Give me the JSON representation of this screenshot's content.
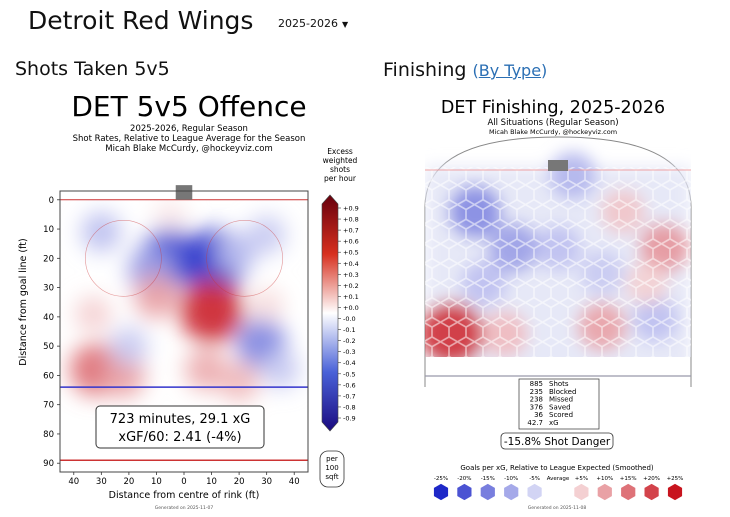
{
  "header": {
    "team": "Detroit Red Wings",
    "season_select": "2025-2026"
  },
  "sections": {
    "left_title": "Shots Taken 5v5",
    "right_title": "Finishing",
    "right_link_open": "(",
    "right_link": "By Type",
    "right_link_close": ")"
  },
  "chart_data": [
    {
      "type": "heatmap",
      "title": "DET 5v5 Offence",
      "subtitle_lines": [
        "2025-2026, Regular Season",
        "Shot Rates, Relative to League Average for the Season",
        "Micah Blake McCurdy, @hockeyviz.com"
      ],
      "xlabel": "Distance from centre of rink (ft)",
      "ylabel": "Distance from goal line (ft)",
      "x_ticks": [
        "40",
        "30",
        "20",
        "10",
        "0",
        "10",
        "20",
        "30",
        "40"
      ],
      "y_ticks": [
        "0",
        "10",
        "20",
        "30",
        "40",
        "50",
        "60",
        "70",
        "80",
        "90"
      ],
      "colorbar_title_lines": [
        "Excess",
        "weighted",
        "shots",
        "per hour"
      ],
      "colorbar_ticks": [
        "+0.9",
        "+0.8",
        "+0.7",
        "+0.6",
        "+0.5",
        "+0.4",
        "+0.3",
        "+0.2",
        "+0.1",
        "+0.0",
        "-0.0",
        "-0.1",
        "-0.2",
        "-0.3",
        "-0.4",
        "-0.5",
        "-0.6",
        "-0.7",
        "-0.8",
        "-0.9"
      ],
      "colorbar_unit_lines": [
        "per",
        "100",
        "sqft"
      ],
      "summary_lines": [
        "723 minutes, 29.1 xG",
        "xGF/60: 2.41 (-4%)"
      ],
      "footer": "Generated on 2025-11-07",
      "blobs": [
        {
          "x": -5,
          "y": 20,
          "value": -0.8
        },
        {
          "x": -12,
          "y": 24,
          "value": -0.45
        },
        {
          "x": 11,
          "y": 21,
          "value": -0.9
        },
        {
          "x": 19,
          "y": 18,
          "value": -0.3
        },
        {
          "x": -30,
          "y": 11,
          "value": -0.3
        },
        {
          "x": 30,
          "y": 12,
          "value": -0.25
        },
        {
          "x": 10,
          "y": 38,
          "value": 0.9
        },
        {
          "x": -10,
          "y": 33,
          "value": 0.4
        },
        {
          "x": -33,
          "y": 39,
          "value": 0.2
        },
        {
          "x": -32,
          "y": 58,
          "value": 0.6
        },
        {
          "x": -22,
          "y": 60,
          "value": 0.4
        },
        {
          "x": 28,
          "y": 49,
          "value": -0.55
        },
        {
          "x": 35,
          "y": 58,
          "value": -0.25
        },
        {
          "x": -20,
          "y": 50,
          "value": -0.25
        },
        {
          "x": 8,
          "y": 58,
          "value": 0.35
        },
        {
          "x": 20,
          "y": 62,
          "value": 0.3
        },
        {
          "x": -5,
          "y": 5,
          "value": 0.1
        },
        {
          "x": 30,
          "y": 36,
          "value": 0.15
        }
      ]
    },
    {
      "type": "heatmap",
      "title": "DET Finishing, 2025-2026",
      "subtitle_lines": [
        "All Situations (Regular Season)",
        "Micah Blake McCurdy, @hockeyviz.com"
      ],
      "stats": [
        {
          "value": "885",
          "label": "Shots"
        },
        {
          "value": "235",
          "label": "Blocked"
        },
        {
          "value": "238",
          "label": "Missed"
        },
        {
          "value": "376",
          "label": "Saved"
        },
        {
          "value": "36",
          "label": "Scored"
        },
        {
          "value": "42.7",
          "label": "xG"
        }
      ],
      "shot_danger": "-15.8% Shot Danger",
      "legend_title": "Goals per xG, Relative to League Expected (Smoothed)",
      "legend_labels": [
        "-25%",
        "-20%",
        "-15%",
        "-10%",
        "-5%",
        "Average",
        "+5%",
        "+10%",
        "+15%",
        "+20%",
        "+25%"
      ],
      "footer": "Generated on 2025-11-08",
      "blobs": [
        {
          "x": -28,
          "y": 18,
          "value": -0.55
        },
        {
          "x": -15,
          "y": 28,
          "value": -0.45
        },
        {
          "x": 0,
          "y": 28,
          "value": -0.3
        },
        {
          "x": -25,
          "y": 38,
          "value": -0.3
        },
        {
          "x": 15,
          "y": 35,
          "value": -0.25
        },
        {
          "x": 5,
          "y": 8,
          "value": -0.35
        },
        {
          "x": 22,
          "y": 18,
          "value": 0.25
        },
        {
          "x": 36,
          "y": 28,
          "value": 0.45
        },
        {
          "x": -36,
          "y": 52,
          "value": 0.9
        },
        {
          "x": -18,
          "y": 52,
          "value": 0.3
        },
        {
          "x": 15,
          "y": 50,
          "value": 0.4
        },
        {
          "x": 33,
          "y": 48,
          "value": -0.3
        },
        {
          "x": 30,
          "y": 38,
          "value": 0.2
        }
      ]
    }
  ]
}
